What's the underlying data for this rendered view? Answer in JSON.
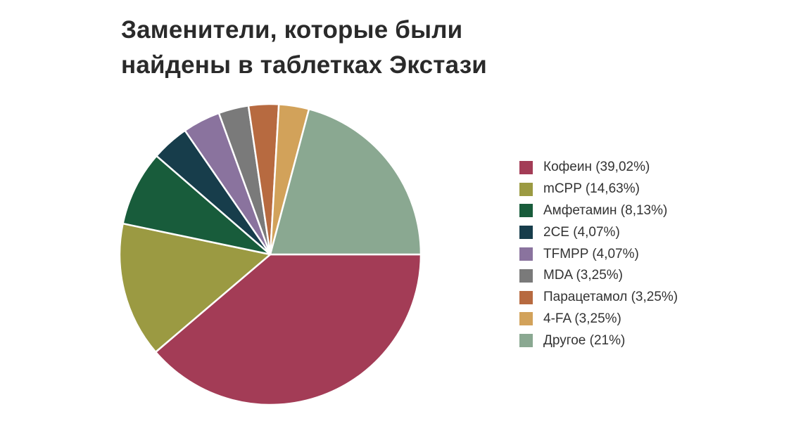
{
  "chart_data": {
    "type": "pie",
    "title_lines": [
      "Заменители, которые были",
      "найдены в таблетках Экстази"
    ],
    "slices": [
      {
        "label": "Кофеин (39,02%)",
        "value": 39.02,
        "color": "#a33c56"
      },
      {
        "label": "mCPP (14,63%)",
        "value": 14.63,
        "color": "#9b9a42"
      },
      {
        "label": "Амфетамин (8,13%)",
        "value": 8.13,
        "color": "#185c3b"
      },
      {
        "label": "2CE (4,07%)",
        "value": 4.07,
        "color": "#173d4b"
      },
      {
        "label": "TFMPP (4,07%)",
        "value": 4.07,
        "color": "#8a739e"
      },
      {
        "label": "MDA (3,25%)",
        "value": 3.25,
        "color": "#7a7a7a"
      },
      {
        "label": "Парацетамол (3,25%)",
        "value": 3.25,
        "color": "#b76a40"
      },
      {
        "label": "4-FA (3,25%)",
        "value": 3.25,
        "color": "#d2a25a"
      },
      {
        "label": "Другое (21%)",
        "value": 21,
        "color": "#8aa891"
      }
    ],
    "legend_position": "right"
  }
}
